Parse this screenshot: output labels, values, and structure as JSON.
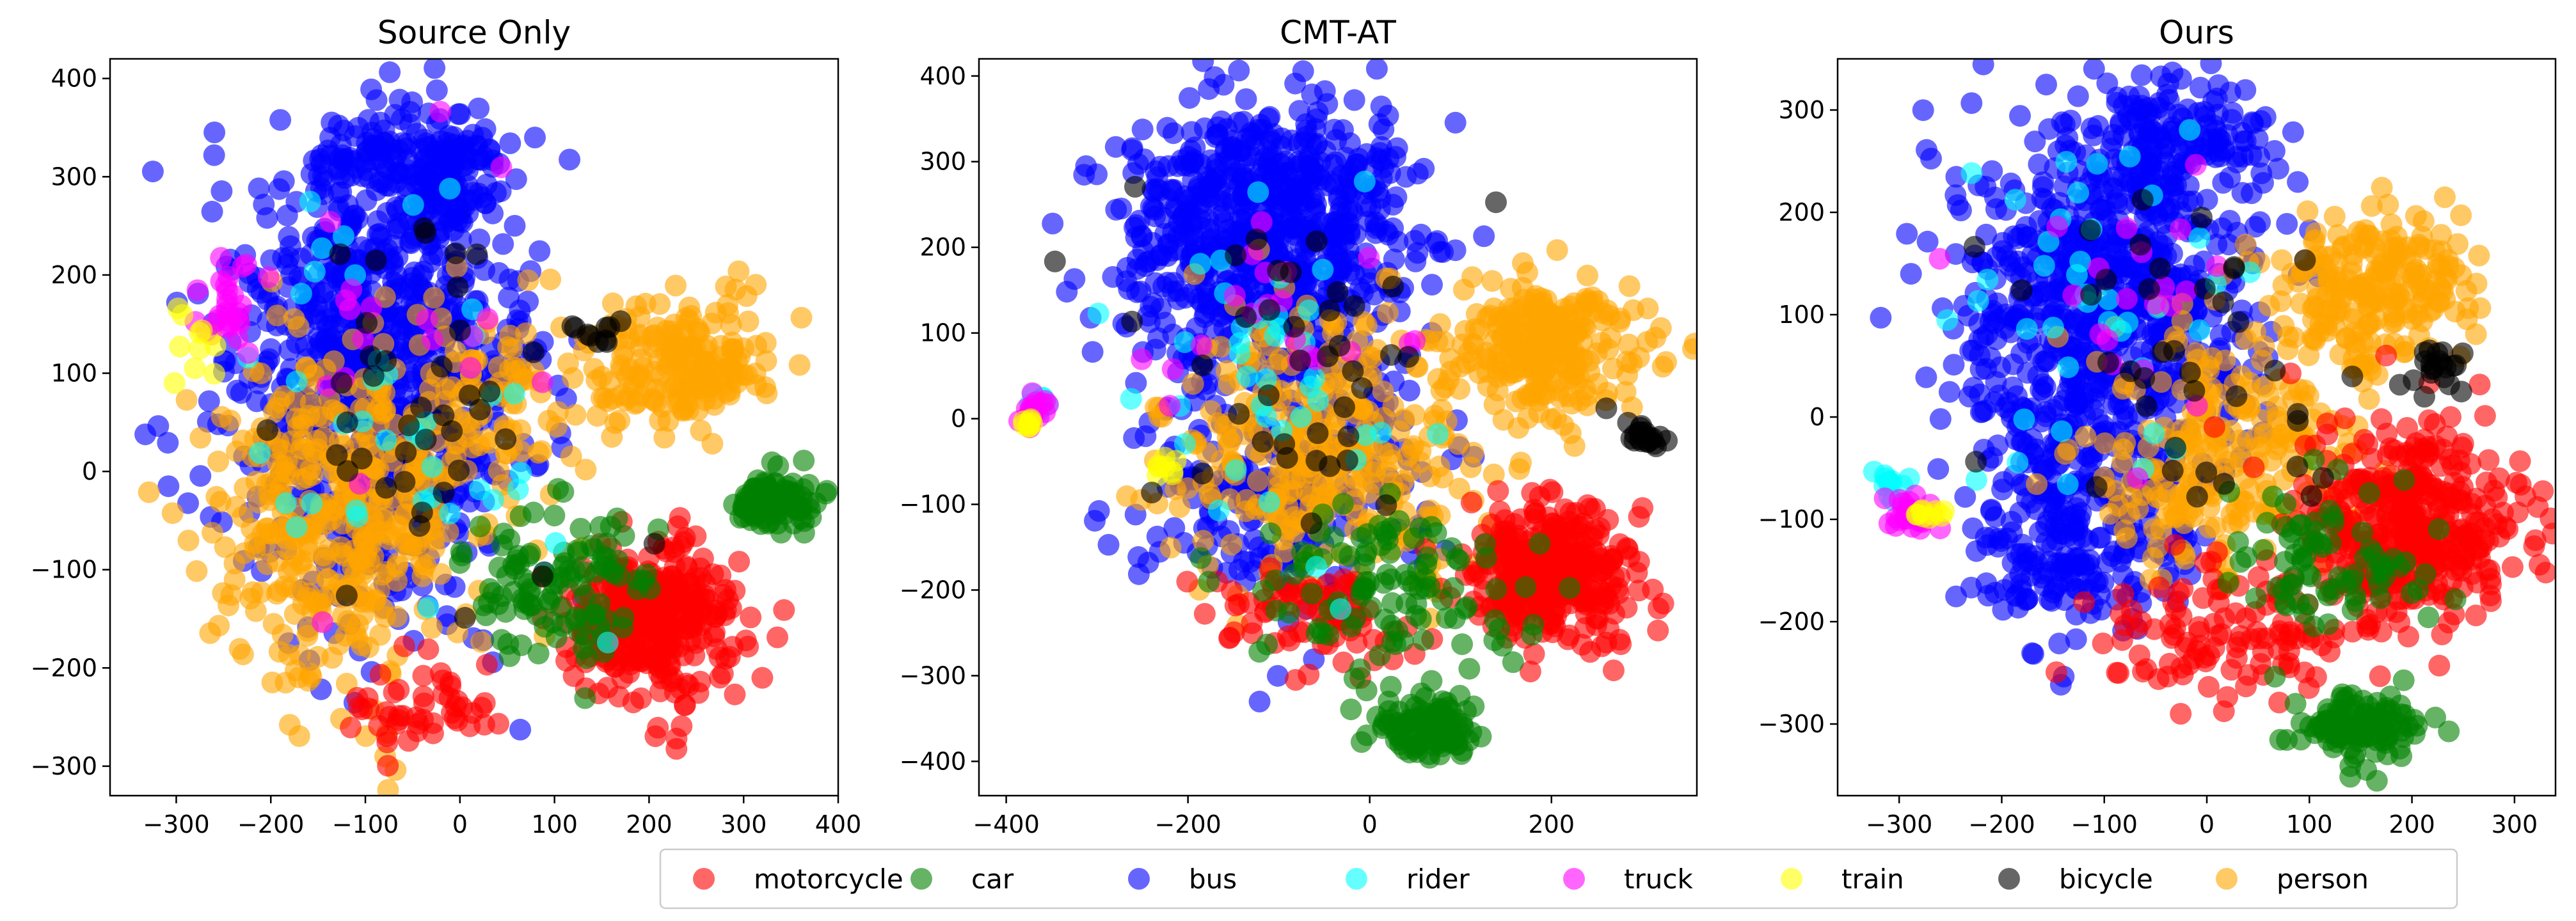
{
  "figure": {
    "legend_labels": [
      "motorcycle",
      "car",
      "bus",
      "rider",
      "truck",
      "train",
      "bicycle",
      "person"
    ]
  },
  "chart_data": [
    {
      "type": "scatter",
      "title": "Source Only",
      "xlim": [
        -370,
        400
      ],
      "ylim": [
        -330,
        420
      ],
      "xticks": [
        -300,
        -200,
        -100,
        0,
        100,
        200,
        300,
        400
      ],
      "yticks": [
        -300,
        -200,
        -100,
        0,
        100,
        200,
        300,
        400
      ],
      "grid": false,
      "series": [
        {
          "name": "bus",
          "color": "#0000ff",
          "clusters": [
            {
              "cx": -90,
              "cy": 100,
              "sx": 95,
              "sy": 150,
              "n": 900
            },
            {
              "cx": -20,
              "cy": 300,
              "sx": 40,
              "sy": 45,
              "n": 140
            },
            {
              "cx": -120,
              "cy": 330,
              "sx": 30,
              "sy": 25,
              "n": 40
            }
          ]
        },
        {
          "name": "person",
          "color": "#ffa500",
          "clusters": [
            {
              "cx": -120,
              "cy": -40,
              "sx": 90,
              "sy": 110,
              "n": 420
            },
            {
              "cx": 230,
              "cy": 110,
              "sx": 60,
              "sy": 40,
              "n": 200
            },
            {
              "cx": 40,
              "cy": 60,
              "sx": 60,
              "sy": 70,
              "n": 90
            }
          ]
        },
        {
          "name": "motorcycle",
          "color": "#ff0000",
          "clusters": [
            {
              "cx": 200,
              "cy": -150,
              "sx": 55,
              "sy": 50,
              "n": 340
            },
            {
              "cx": -40,
              "cy": -240,
              "sx": 50,
              "sy": 25,
              "n": 50
            }
          ]
        },
        {
          "name": "car",
          "color": "#008000",
          "clusters": [
            {
              "cx": 330,
              "cy": -30,
              "sx": 30,
              "sy": 18,
              "n": 90
            },
            {
              "cx": 110,
              "cy": -120,
              "sx": 60,
              "sy": 50,
              "n": 110
            }
          ]
        },
        {
          "name": "rider",
          "color": "#00ffff",
          "clusters": [
            {
              "cx": -80,
              "cy": 60,
              "sx": 110,
              "sy": 130,
              "n": 40
            }
          ]
        },
        {
          "name": "truck",
          "color": "#ff00ff",
          "clusters": [
            {
              "cx": -250,
              "cy": 170,
              "sx": 20,
              "sy": 25,
              "n": 25
            },
            {
              "cx": -60,
              "cy": 120,
              "sx": 100,
              "sy": 100,
              "n": 20
            }
          ]
        },
        {
          "name": "train",
          "color": "#ffff00",
          "clusters": [
            {
              "cx": -280,
              "cy": 140,
              "sx": 15,
              "sy": 25,
              "n": 10
            }
          ]
        },
        {
          "name": "bicycle",
          "color": "#000000",
          "clusters": [
            {
              "cx": -40,
              "cy": 60,
              "sx": 110,
              "sy": 130,
              "n": 40
            },
            {
              "cx": 140,
              "cy": 140,
              "sx": 20,
              "sy": 15,
              "n": 10
            }
          ]
        }
      ]
    },
    {
      "type": "scatter",
      "title": "CMT-AT",
      "xlim": [
        -430,
        360
      ],
      "ylim": [
        -440,
        420
      ],
      "xticks": [
        -400,
        -200,
        0,
        200
      ],
      "yticks": [
        -400,
        -300,
        -200,
        -100,
        0,
        100,
        200,
        300,
        400
      ],
      "grid": false,
      "series": [
        {
          "name": "bus",
          "color": "#0000ff",
          "clusters": [
            {
              "cx": -110,
              "cy": 220,
              "sx": 100,
              "sy": 90,
              "n": 700
            },
            {
              "cx": -100,
              "cy": -40,
              "sx": 100,
              "sy": 120,
              "n": 300
            }
          ]
        },
        {
          "name": "person",
          "color": "#ffa500",
          "clusters": [
            {
              "cx": 200,
              "cy": 80,
              "sx": 70,
              "sy": 45,
              "n": 260
            },
            {
              "cx": -60,
              "cy": -40,
              "sx": 110,
              "sy": 100,
              "n": 330
            }
          ]
        },
        {
          "name": "motorcycle",
          "color": "#ff0000",
          "clusters": [
            {
              "cx": 200,
              "cy": -180,
              "sx": 55,
              "sy": 50,
              "n": 340
            },
            {
              "cx": -60,
              "cy": -230,
              "sx": 70,
              "sy": 35,
              "n": 80
            }
          ]
        },
        {
          "name": "car",
          "color": "#008000",
          "clusters": [
            {
              "cx": 70,
              "cy": -360,
              "sx": 35,
              "sy": 25,
              "n": 110
            },
            {
              "cx": 20,
              "cy": -200,
              "sx": 90,
              "sy": 60,
              "n": 110
            }
          ]
        },
        {
          "name": "rider",
          "color": "#00ffff",
          "clusters": [
            {
              "cx": -100,
              "cy": 80,
              "sx": 110,
              "sy": 130,
              "n": 40
            },
            {
              "cx": -360,
              "cy": 20,
              "sx": 10,
              "sy": 12,
              "n": 10
            }
          ]
        },
        {
          "name": "truck",
          "color": "#ff00ff",
          "clusters": [
            {
              "cx": -370,
              "cy": 10,
              "sx": 10,
              "sy": 12,
              "n": 20
            },
            {
              "cx": -100,
              "cy": 100,
              "sx": 100,
              "sy": 110,
              "n": 20
            }
          ]
        },
        {
          "name": "train",
          "color": "#ffff00",
          "clusters": [
            {
              "cx": -375,
              "cy": -5,
              "sx": 7,
              "sy": 5,
              "n": 8
            },
            {
              "cx": -225,
              "cy": -55,
              "sx": 10,
              "sy": 10,
              "n": 8
            }
          ]
        },
        {
          "name": "bicycle",
          "color": "#000000",
          "clusters": [
            {
              "cx": 305,
              "cy": -20,
              "sx": 14,
              "sy": 8,
              "n": 20
            },
            {
              "cx": -50,
              "cy": 40,
              "sx": 110,
              "sy": 130,
              "n": 40
            }
          ]
        }
      ]
    },
    {
      "type": "scatter",
      "title": "Ours",
      "xlim": [
        -360,
        340
      ],
      "ylim": [
        -370,
        350
      ],
      "xticks": [
        -300,
        -200,
        -100,
        0,
        100,
        200,
        300
      ],
      "yticks": [
        -300,
        -200,
        -100,
        0,
        100,
        200,
        300
      ],
      "grid": false,
      "series": [
        {
          "name": "bus",
          "color": "#0000ff",
          "clusters": [
            {
              "cx": -100,
              "cy": 100,
              "sx": 90,
              "sy": 120,
              "n": 750
            },
            {
              "cx": -30,
              "cy": 270,
              "sx": 60,
              "sy": 40,
              "n": 150
            },
            {
              "cx": -130,
              "cy": -120,
              "sx": 70,
              "sy": 60,
              "n": 200
            }
          ]
        },
        {
          "name": "person",
          "color": "#ffa500",
          "clusters": [
            {
              "cx": 170,
              "cy": 130,
              "sx": 60,
              "sy": 45,
              "n": 220
            },
            {
              "cx": 20,
              "cy": -30,
              "sx": 80,
              "sy": 80,
              "n": 250
            }
          ]
        },
        {
          "name": "motorcycle",
          "color": "#ff0000",
          "clusters": [
            {
              "cx": 200,
              "cy": -100,
              "sx": 65,
              "sy": 60,
              "n": 400
            },
            {
              "cx": 30,
              "cy": -210,
              "sx": 90,
              "sy": 40,
              "n": 120
            }
          ]
        },
        {
          "name": "car",
          "color": "#008000",
          "clusters": [
            {
              "cx": 150,
              "cy": -300,
              "sx": 35,
              "sy": 20,
              "n": 120
            },
            {
              "cx": 120,
              "cy": -140,
              "sx": 60,
              "sy": 50,
              "n": 80
            }
          ]
        },
        {
          "name": "rider",
          "color": "#00ffff",
          "clusters": [
            {
              "cx": -310,
              "cy": -60,
              "sx": 12,
              "sy": 12,
              "n": 12
            },
            {
              "cx": -100,
              "cy": 80,
              "sx": 90,
              "sy": 120,
              "n": 40
            }
          ]
        },
        {
          "name": "truck",
          "color": "#ff00ff",
          "clusters": [
            {
              "cx": -290,
              "cy": -95,
              "sx": 14,
              "sy": 12,
              "n": 25
            },
            {
              "cx": -80,
              "cy": 100,
              "sx": 90,
              "sy": 110,
              "n": 20
            }
          ]
        },
        {
          "name": "train",
          "color": "#ffff00",
          "clusters": [
            {
              "cx": -270,
              "cy": -95,
              "sx": 10,
              "sy": 6,
              "n": 10
            }
          ]
        },
        {
          "name": "bicycle",
          "color": "#000000",
          "clusters": [
            {
              "cx": 225,
              "cy": 50,
              "sx": 15,
              "sy": 12,
              "n": 20
            },
            {
              "cx": -20,
              "cy": 60,
              "sx": 100,
              "sy": 120,
              "n": 40
            }
          ]
        }
      ]
    }
  ]
}
